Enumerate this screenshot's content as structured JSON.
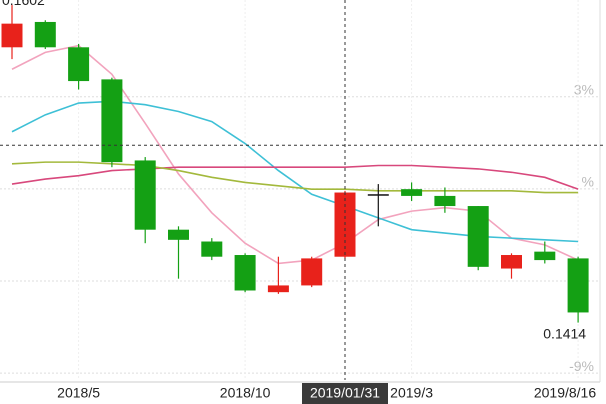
{
  "chart_data": {
    "type": "candlestick",
    "categories": [
      null,
      null,
      "2018/5",
      null,
      null,
      null,
      null,
      "2018/10",
      null,
      null,
      "2019/01/31",
      null,
      "2019/3",
      null,
      null,
      null,
      null,
      "2019/8/16"
    ],
    "open": [
      0.1577,
      0.1592,
      0.1577,
      0.1558,
      0.151,
      0.1469,
      0.1462,
      0.1454,
      0.1432,
      0.1436,
      0.1453,
      0.149,
      0.1493,
      0.1489,
      0.1483,
      0.1446,
      0.1456,
      0.1452
    ],
    "high": [
      0.1602,
      0.1593,
      0.1579,
      0.1559,
      0.1512,
      0.1471,
      0.1464,
      0.1455,
      0.1453,
      0.1453,
      0.1492,
      0.1496,
      0.1497,
      0.1494,
      0.1483,
      0.1455,
      0.1462,
      0.1453
    ],
    "low": [
      0.157,
      0.1576,
      0.1552,
      0.1506,
      0.1461,
      0.144,
      0.1451,
      0.1432,
      0.1431,
      0.1435,
      0.1452,
      0.1471,
      0.1486,
      0.1479,
      0.1445,
      0.144,
      0.1449,
      0.1414
    ],
    "close": [
      0.1591,
      0.1577,
      0.1557,
      0.1509,
      0.1469,
      0.1463,
      0.1453,
      0.1433,
      0.1436,
      0.1452,
      0.1491,
      0.149,
      0.1489,
      0.1483,
      0.1447,
      0.1454,
      0.1451,
      0.142
    ],
    "colors": {
      "up": "#e8221b",
      "down": "#14a014",
      "flat": "#111111"
    },
    "series": [
      {
        "color": "#f2a3bd",
        "values": [
          0.1564,
          0.1574,
          0.1578,
          0.1561,
          0.1532,
          0.1502,
          0.1479,
          0.1461,
          0.1449,
          0.1451,
          0.1461,
          0.1475,
          0.148,
          0.1482,
          0.148,
          0.1464,
          0.146,
          0.1451
        ]
      },
      {
        "color": "#3ec0d6",
        "values": [
          0.1527,
          0.1537,
          0.1544,
          0.1545,
          0.1543,
          0.1539,
          0.1533,
          0.152,
          0.1504,
          0.149,
          0.1483,
          0.1476,
          0.1469,
          0.1467,
          0.1465,
          0.1464,
          0.1463,
          0.1462
        ]
      },
      {
        "color": "#d8487c",
        "values": [
          0.1496,
          0.1499,
          0.1501,
          0.1504,
          0.1505,
          0.1506,
          0.1506,
          0.1506,
          0.1506,
          0.1506,
          0.1506,
          0.1507,
          0.1507,
          0.1506,
          0.1505,
          0.1503,
          0.15,
          0.1493
        ]
      },
      {
        "color": "#a3b93c",
        "values": [
          0.1508,
          0.1509,
          0.1509,
          0.1508,
          0.1507,
          0.1504,
          0.15,
          0.1497,
          0.1495,
          0.1493,
          0.1493,
          0.1492,
          0.1492,
          0.1492,
          0.1492,
          0.1492,
          0.1491,
          0.1491
        ]
      }
    ],
    "ylim": [
      0.138,
      0.1605
    ],
    "y2lim": [
      -9.3,
      7.2
    ],
    "y2ticks": [
      {
        "value": 3,
        "label": "3%"
      },
      {
        "value": -1,
        "label": "%"
      },
      {
        "value": -5,
        "label": null
      },
      {
        "value": -9,
        "label": "-9%"
      }
    ],
    "crosshair": {
      "x": "2019/01/31",
      "y": 0.1519
    },
    "grid": true
  }
}
